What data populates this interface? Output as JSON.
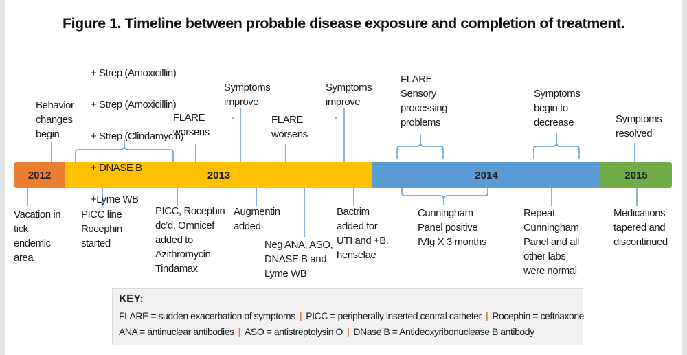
{
  "title": "Figure 1. Timeline between probable disease exposure and completion of treatment.",
  "colors": {
    "y2012": "#ED7D31",
    "y2013": "#FFC000",
    "y2014": "#5B9BD5",
    "y2015": "#70AD47",
    "connector": "#5B9BD5"
  },
  "years": [
    "2012",
    "2013",
    "2014",
    "2015"
  ],
  "above": {
    "behavior": "Behavior\nchanges\nbegin",
    "strep": [
      "+ Strep (Amoxicillin)",
      "+ Strep (Amoxicillin)",
      "+ Strep (Clindamycin)",
      "+ DNASE B",
      "+Lyme WB"
    ],
    "flare1": "FLARE\nworsens",
    "improve1": "Symptoms\nimprove",
    "flare2": "FLARE\nworsens",
    "improve2": "Symptoms\nimprove",
    "sensory": "FLARE\nSensory\nprocessing\nproblems",
    "decrease": "Symptoms\nbegin to\ndecrease",
    "resolved": "Symptoms\nresolved"
  },
  "below": {
    "vacation": "Vacation in\ntick\nendemic\narea",
    "picc_line": "PICC line\nRocephin\nstarted",
    "picc_dc": "PICC, Rocephin\ndc’d, Omnicef\nadded to\nAzithromycin\nTindamax",
    "augmentin": "Augmentin\nadded",
    "neg_ana": "Neg ANA, ASO,\nDNASE B and\nLyme WB",
    "bactrim": "Bactrim\nadded for\nUTI and +B.\nhenselae",
    "cunningham": "Cunningham\nPanel positive\nIVIg X 3 months",
    "repeat": "Repeat\nCunningham\nPanel and all\nother labs\nwere normal",
    "medications": "Medications\ntapered and\ndiscontinued"
  },
  "key": {
    "title": "KEY:",
    "row1": [
      "FLARE = sudden exacerbation of symptoms",
      "PICC = peripherally inserted central catheter",
      "Rocephin = ceftriaxone"
    ],
    "row2": [
      "ANA = antinuclear antibodies",
      "ASO = antistreptolysin O",
      "DNase B  = Antideoxyribonuclease B antibody"
    ],
    "separator": "|"
  }
}
